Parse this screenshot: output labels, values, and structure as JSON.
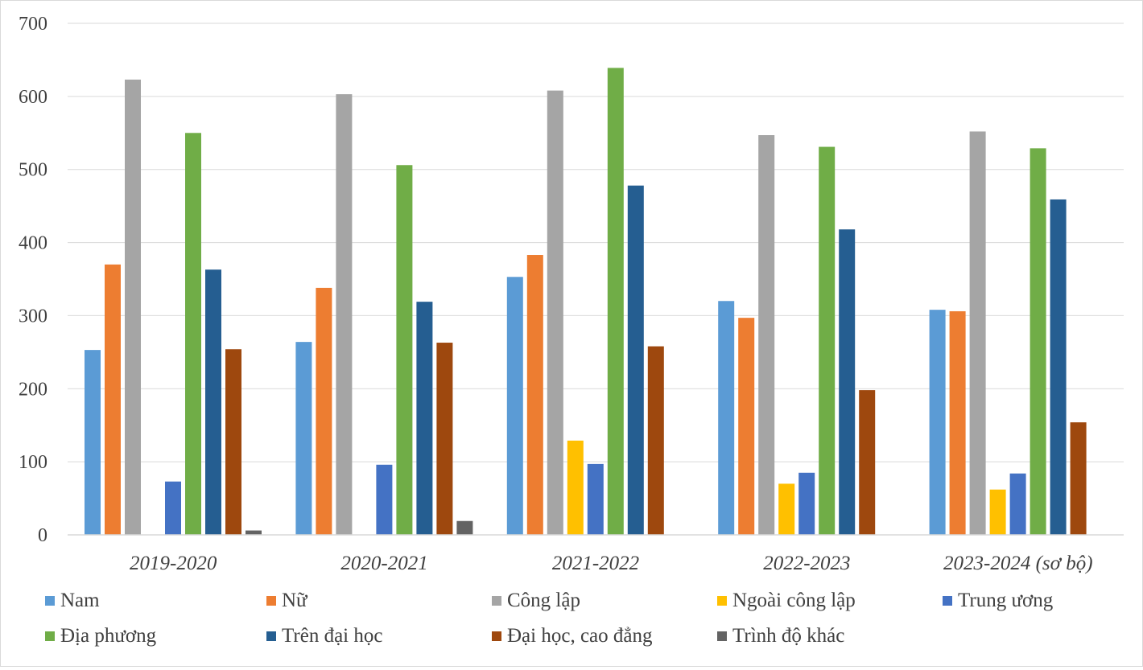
{
  "chart_data": {
    "type": "bar",
    "categories": [
      "2019-2020",
      "2020-2021",
      "2021-2022",
      "2022-2023",
      "2023-2024 (sơ bộ)"
    ],
    "series": [
      {
        "name": "Nam",
        "color": "#5b9bd5",
        "values": [
          253,
          264,
          353,
          320,
          308
        ]
      },
      {
        "name": "Nữ",
        "color": "#ed7d31",
        "values": [
          370,
          338,
          383,
          297,
          306
        ]
      },
      {
        "name": "Công lập",
        "color": "#a5a5a5",
        "values": [
          623,
          603,
          608,
          547,
          552
        ]
      },
      {
        "name": "Ngoài công lập",
        "color": "#ffc000",
        "values": [
          0,
          0,
          129,
          70,
          62
        ]
      },
      {
        "name": "Trung ương",
        "color": "#4472c4",
        "values": [
          73,
          96,
          97,
          85,
          84
        ]
      },
      {
        "name": "Địa phương",
        "color": "#70ad47",
        "values": [
          550,
          506,
          639,
          531,
          529
        ]
      },
      {
        "name": "Trên đại học",
        "color": "#255e91",
        "values": [
          363,
          319,
          478,
          418,
          459
        ]
      },
      {
        "name": "Đại học, cao đẳng",
        "color": "#9e480e",
        "values": [
          254,
          263,
          258,
          198,
          154
        ]
      },
      {
        "name": "Trình độ khác",
        "color": "#636363",
        "values": [
          6,
          19,
          0,
          0,
          0
        ]
      }
    ],
    "ylim": [
      0,
      700
    ],
    "yticks": [
      0,
      100,
      200,
      300,
      400,
      500,
      600,
      700
    ],
    "grid": true,
    "gridline_color": "#d9d9d9",
    "legend_position": "bottom"
  }
}
